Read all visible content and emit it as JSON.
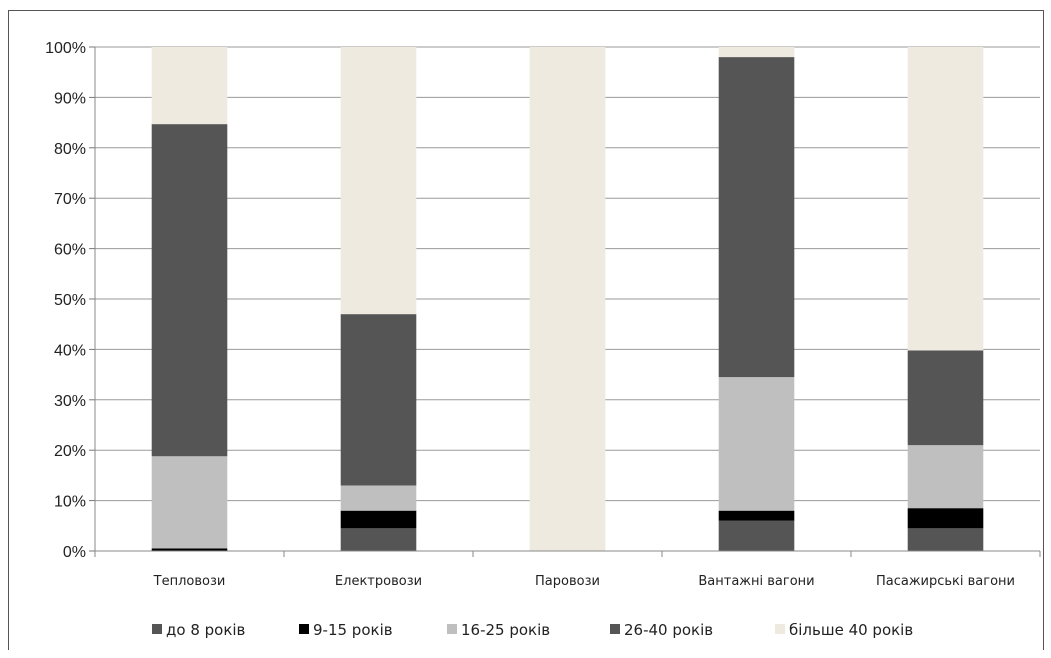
{
  "chart_data": {
    "type": "bar",
    "stacked": true,
    "percent": true,
    "categories": [
      "Тепловози",
      "Електровози",
      "Паровози",
      "Вантажні вагони",
      "Пасажирські вагони"
    ],
    "series": [
      {
        "name": "до 8 років",
        "values": [
          0,
          4.5,
          0,
          6,
          4.5
        ]
      },
      {
        "name": "9-15 років",
        "values": [
          0.5,
          3.5,
          0,
          2,
          4
        ]
      },
      {
        "name": "16-25 років",
        "values": [
          18.3,
          5,
          0,
          26.5,
          12.5
        ]
      },
      {
        "name": "26-40 років",
        "values": [
          65.9,
          34,
          0,
          63.5,
          18.8
        ]
      },
      {
        "name": "більше 40 років",
        "values": [
          15.3,
          53,
          100,
          2,
          60.2
        ]
      }
    ],
    "yticks": [
      "0%",
      "10%",
      "20%",
      "30%",
      "40%",
      "50%",
      "60%",
      "70%",
      "80%",
      "90%",
      "100%"
    ],
    "ylim": [
      0,
      100
    ],
    "grid": true,
    "legend": "bottom",
    "colors": [
      "#555555",
      "#000000",
      "#bfbfbf",
      "#555555",
      "#eeeadf"
    ]
  }
}
